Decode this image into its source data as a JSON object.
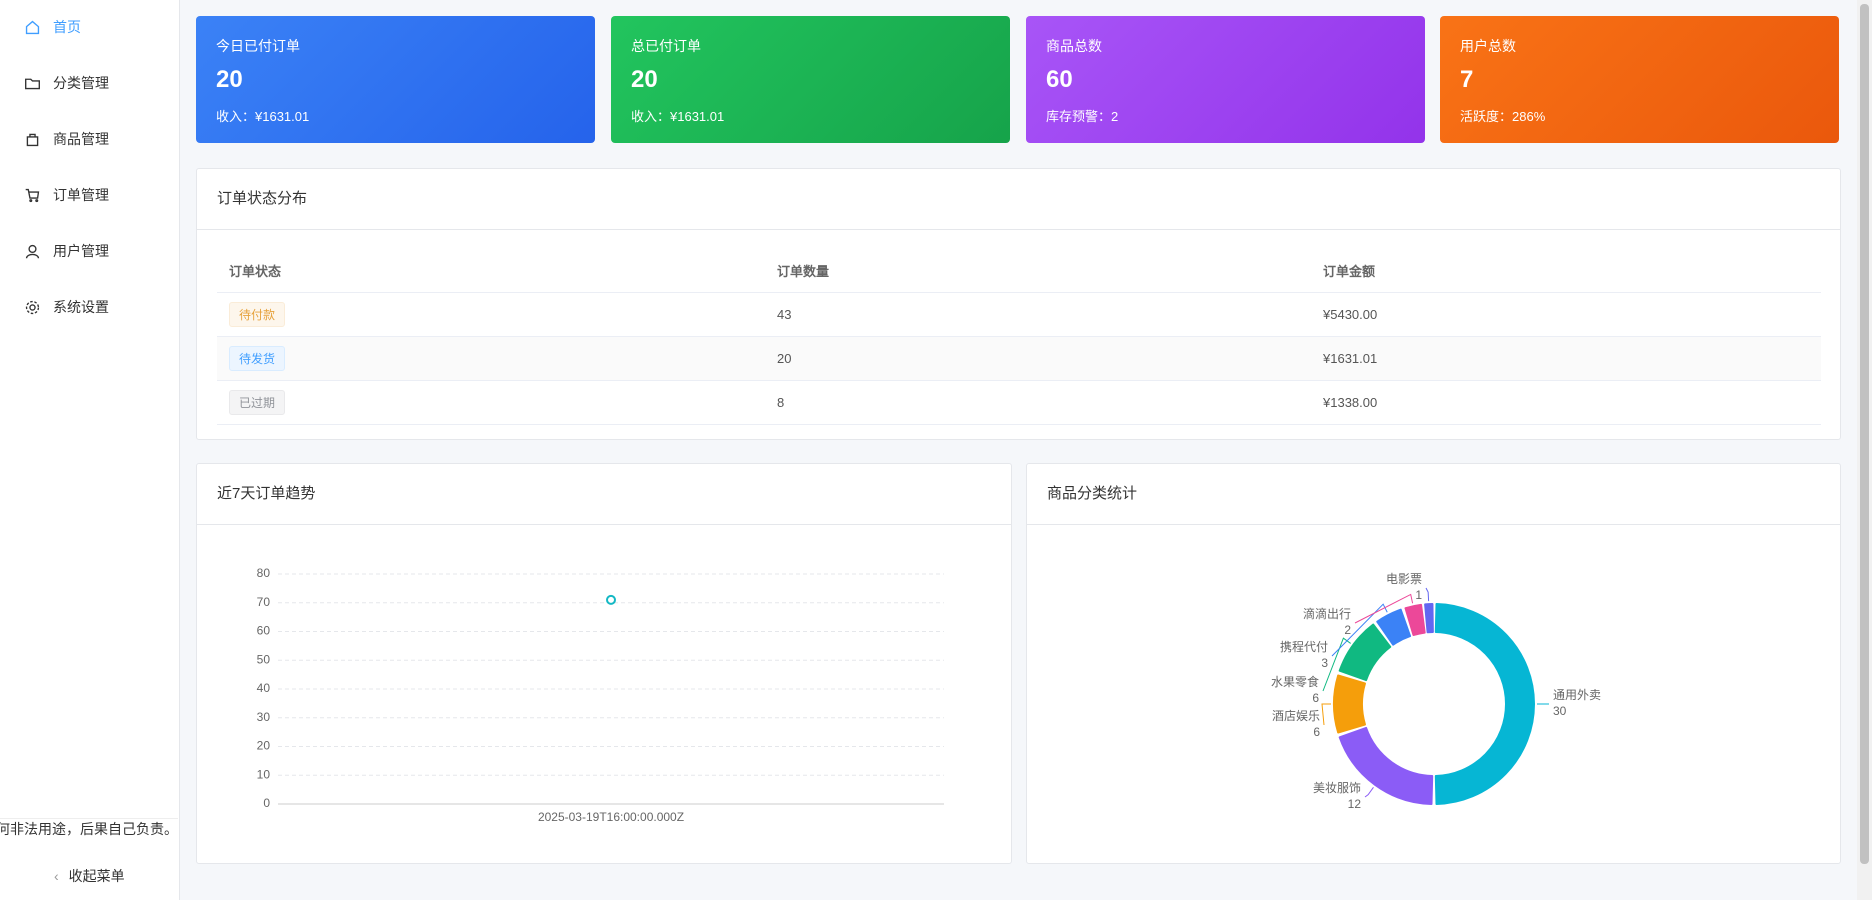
{
  "sidebar": {
    "menu": [
      "首页",
      "分类管理",
      "商品管理",
      "订单管理",
      "用户管理",
      "系统设置"
    ],
    "notice": "任何非法用途，后果自己负责。",
    "collapse": "收起菜单"
  },
  "stats": [
    {
      "title": "今日已付订单",
      "value": "20",
      "sub": "收入：¥1631.01"
    },
    {
      "title": "总已付订单",
      "value": "20",
      "sub": "收入：¥1631.01"
    },
    {
      "title": "商品总数",
      "value": "60",
      "sub": "库存预警：2"
    },
    {
      "title": "用户总数",
      "value": "7",
      "sub": "活跃度：286%"
    }
  ],
  "order_status": {
    "title": "订单状态分布",
    "columns": [
      "订单状态",
      "订单数量",
      "订单金额"
    ],
    "rows": [
      [
        "待付款",
        "43",
        "¥5430.00"
      ],
      [
        "待发货",
        "20",
        "¥1631.01"
      ],
      [
        "已过期",
        "8",
        "¥1338.00"
      ]
    ]
  },
  "chart_data": [
    {
      "type": "line",
      "title": "近7天订单趋势",
      "categories": [
        "2025-03-19T16:00:00.000Z"
      ],
      "series": [
        {
          "color": "#14b8c4",
          "values": [
            71
          ]
        }
      ],
      "ylim": [
        0,
        80
      ],
      "yticks": [
        0,
        10,
        20,
        30,
        40,
        50,
        60,
        70,
        80
      ],
      "grid": true
    },
    {
      "type": "pie",
      "title": "商品分类统计",
      "categories": [
        "通用外卖",
        "美妆服饰",
        "酒店娱乐",
        "水果零食",
        "携程代付",
        "滴滴出行",
        "电影票"
      ],
      "values": [
        30,
        12,
        6,
        6,
        3,
        2,
        1
      ],
      "colors": [
        "#06b6d4",
        "#8b5cf6",
        "#f59e0b",
        "#10b981",
        "#3b82f6",
        "#ec4899",
        "#6366f1"
      ],
      "donut": true
    }
  ]
}
